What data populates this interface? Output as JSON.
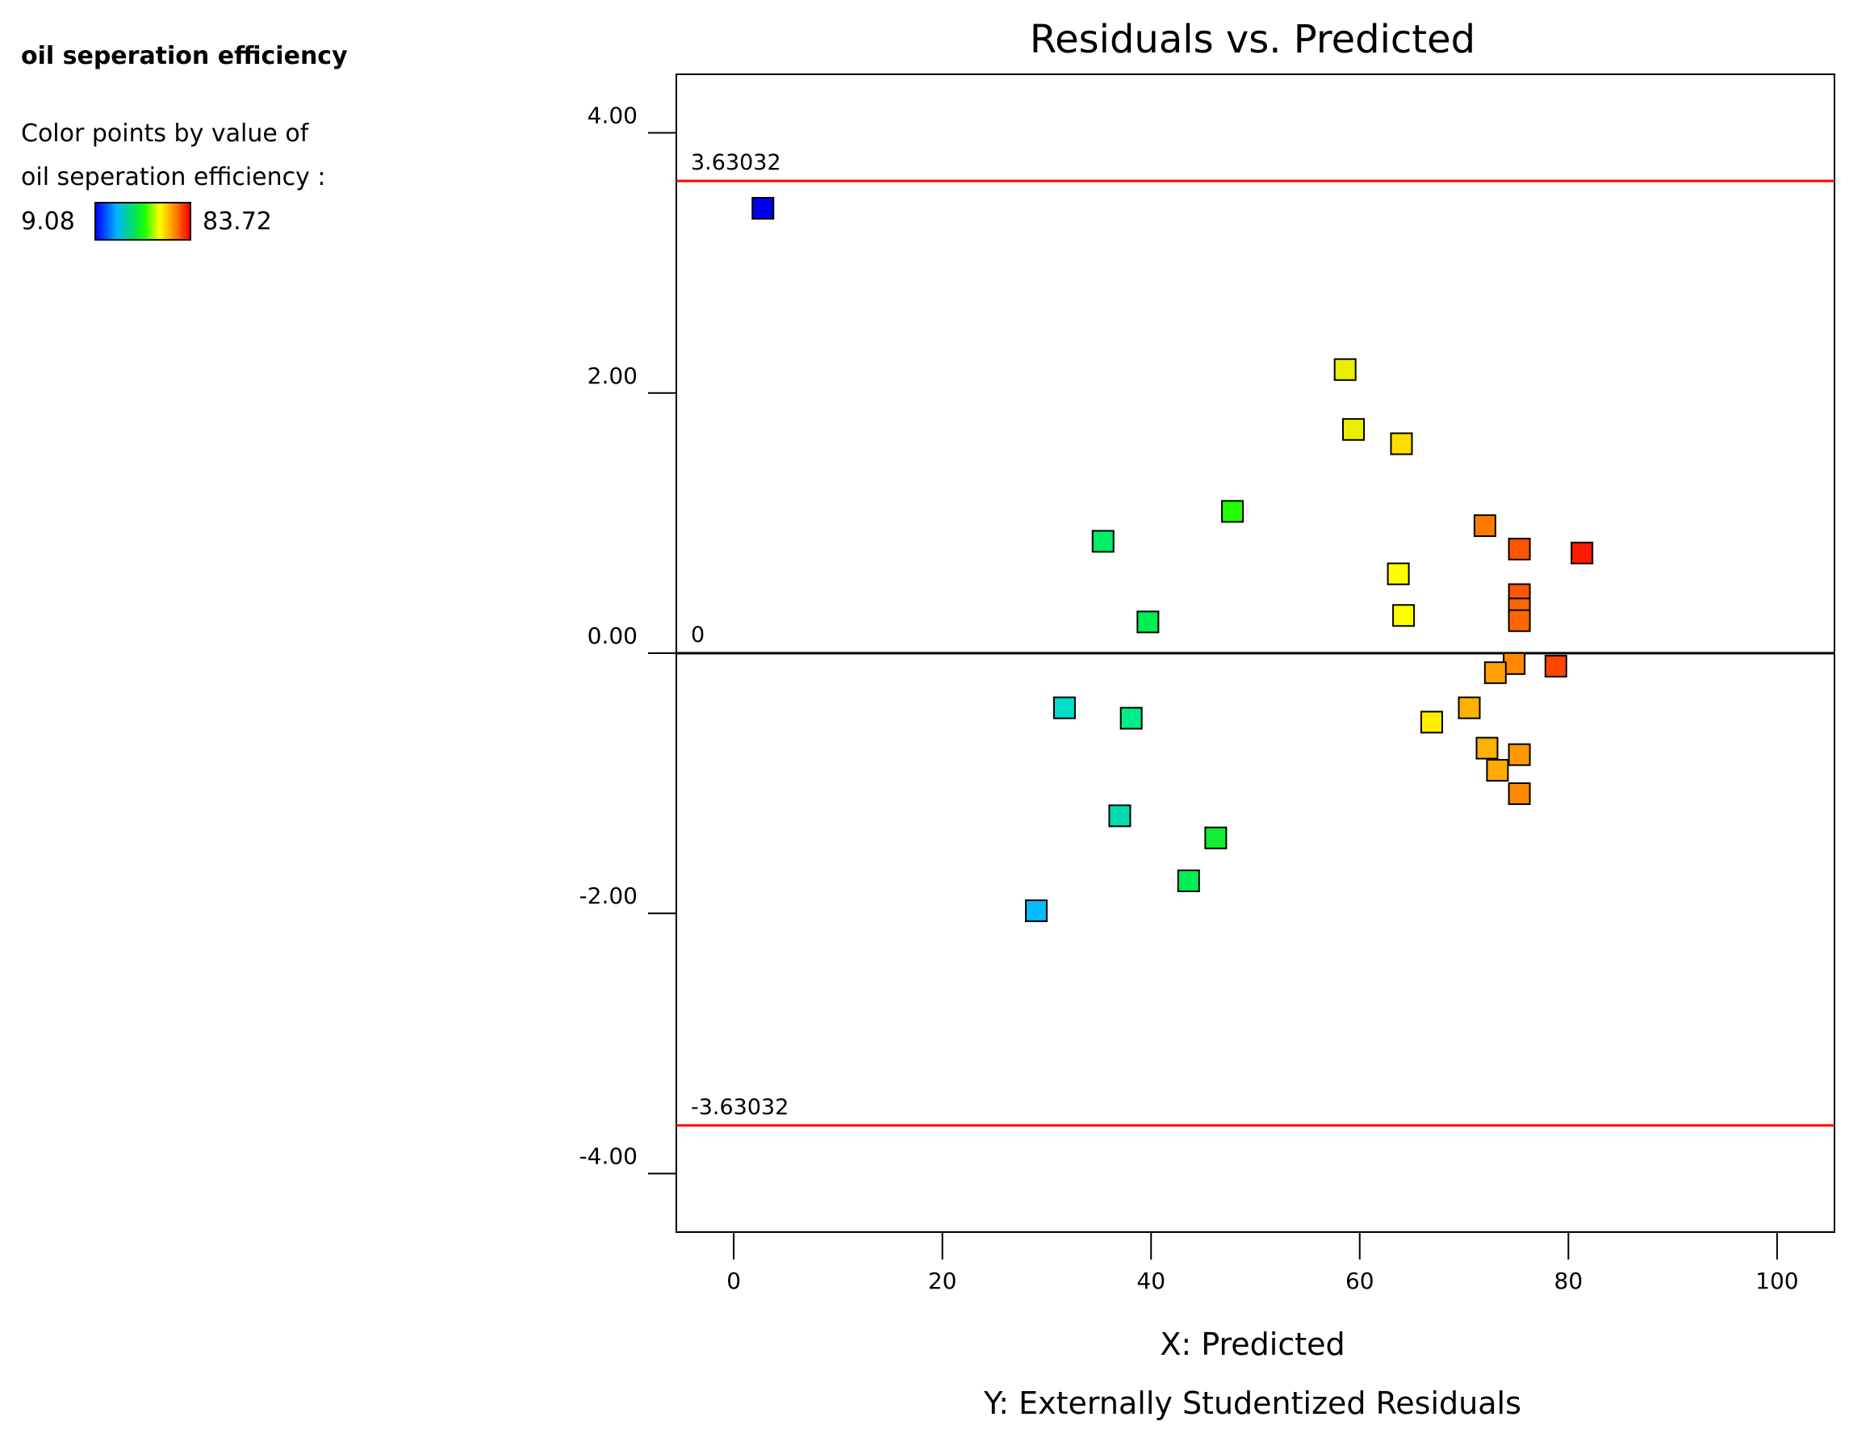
{
  "legend": {
    "title": "oil seperation efficiency",
    "line1": "Color points by value of",
    "line2": "oil seperation efficiency :",
    "min_label": "9.08",
    "max_label": "83.72",
    "min_value": 9.08,
    "max_value": 83.72,
    "gradient_colors": [
      "#0000ff",
      "#00b4ff",
      "#00e060",
      "#1cff00",
      "#ffff00",
      "#ff8800",
      "#ff0000"
    ]
  },
  "chart_data": {
    "type": "scatter",
    "title": "Residuals vs. Predicted",
    "xlabel": "X: Predicted",
    "ylabel": "Y: Externally Studentized Residuals",
    "xlim": [
      -5.5,
      105.5
    ],
    "ylim": [
      -4.45,
      4.45
    ],
    "x_ticks": [
      0,
      20,
      40,
      60,
      80,
      100
    ],
    "x_tick_labels": [
      "0",
      "20",
      "40",
      "60",
      "80",
      "100"
    ],
    "y_ticks": [
      4,
      2,
      0,
      -2,
      -4
    ],
    "y_tick_labels": [
      "4.00",
      "2.00",
      "0.00",
      "-2.00",
      "-4.00"
    ],
    "reference_lines": [
      {
        "value": 3.63032,
        "label": "3.63032",
        "color": "#ff0000"
      },
      {
        "value": 0,
        "label": "0",
        "color": "#000000"
      },
      {
        "value": -3.63032,
        "label": "-3.63032",
        "color": "#ff0000"
      }
    ],
    "points": [
      {
        "x": 2.8,
        "y": 3.42,
        "color": "#0000ee"
      },
      {
        "x": 58.6,
        "y": 2.18,
        "color": "#e8f000"
      },
      {
        "x": 59.4,
        "y": 1.72,
        "color": "#e8f000"
      },
      {
        "x": 64.0,
        "y": 1.61,
        "color": "#ffdd00"
      },
      {
        "x": 47.8,
        "y": 1.09,
        "color": "#22ff00"
      },
      {
        "x": 72.0,
        "y": 0.98,
        "color": "#ff7a00"
      },
      {
        "x": 35.4,
        "y": 0.86,
        "color": "#00ee66"
      },
      {
        "x": 75.3,
        "y": 0.8,
        "color": "#ff5500"
      },
      {
        "x": 81.3,
        "y": 0.77,
        "color": "#ff1a00"
      },
      {
        "x": 63.7,
        "y": 0.61,
        "color": "#ffff00"
      },
      {
        "x": 75.3,
        "y": 0.45,
        "color": "#ff5500"
      },
      {
        "x": 75.3,
        "y": 0.34,
        "color": "#ff6600"
      },
      {
        "x": 64.2,
        "y": 0.29,
        "color": "#ffff00"
      },
      {
        "x": 75.3,
        "y": 0.25,
        "color": "#ff6600"
      },
      {
        "x": 39.7,
        "y": 0.24,
        "color": "#00ee55"
      },
      {
        "x": 74.8,
        "y": -0.08,
        "color": "#ff8800"
      },
      {
        "x": 78.8,
        "y": -0.1,
        "color": "#ff4400"
      },
      {
        "x": 73.0,
        "y": -0.15,
        "color": "#ffa000"
      },
      {
        "x": 31.7,
        "y": -0.42,
        "color": "#00ddcc"
      },
      {
        "x": 70.5,
        "y": -0.42,
        "color": "#ffb000"
      },
      {
        "x": 38.1,
        "y": -0.5,
        "color": "#00ee88"
      },
      {
        "x": 66.9,
        "y": -0.53,
        "color": "#ffee00"
      },
      {
        "x": 72.2,
        "y": -0.73,
        "color": "#ffb000"
      },
      {
        "x": 75.3,
        "y": -0.78,
        "color": "#ff9900"
      },
      {
        "x": 73.2,
        "y": -0.9,
        "color": "#ffaa00"
      },
      {
        "x": 75.3,
        "y": -1.08,
        "color": "#ff8800"
      },
      {
        "x": 37.0,
        "y": -1.25,
        "color": "#00ddaa"
      },
      {
        "x": 46.2,
        "y": -1.42,
        "color": "#11ee33"
      },
      {
        "x": 43.6,
        "y": -1.75,
        "color": "#00ee55"
      },
      {
        "x": 29.0,
        "y": -1.98,
        "color": "#00bbff"
      }
    ]
  }
}
